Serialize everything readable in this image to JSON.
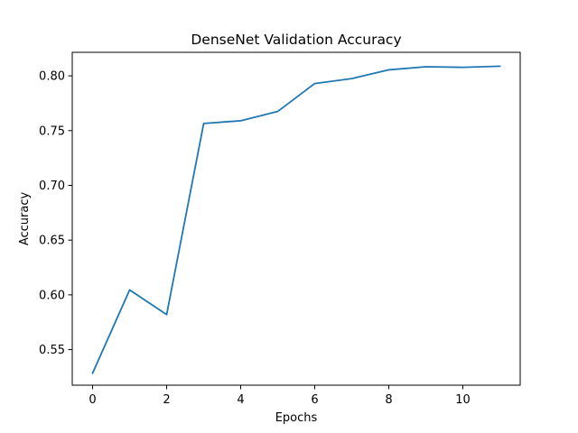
{
  "chart_data": {
    "type": "line",
    "title": "DenseNet Validation Accuracy",
    "xlabel": "Epochs",
    "ylabel": "Accuracy",
    "xlim": [
      -0.55,
      11.55
    ],
    "ylim": [
      0.5175,
      0.8215
    ],
    "xticks": [
      0,
      2,
      4,
      6,
      8,
      10
    ],
    "yticks": [
      0.55,
      0.6,
      0.65,
      0.7,
      0.75,
      0.8
    ],
    "xtick_labels": [
      "0",
      "2",
      "4",
      "6",
      "8",
      "10"
    ],
    "ytick_labels": [
      "0.55",
      "0.60",
      "0.65",
      "0.70",
      "0.75",
      "0.80"
    ],
    "grid": false,
    "series": [
      {
        "color": "#1f77b4",
        "x": [
          0,
          1,
          2,
          3,
          4,
          5,
          6,
          7,
          8,
          9,
          10,
          11
        ],
        "y": [
          0.5285,
          0.6045,
          0.582,
          0.7565,
          0.759,
          0.7675,
          0.793,
          0.7975,
          0.8055,
          0.8083,
          0.8078,
          0.8088
        ]
      }
    ]
  }
}
